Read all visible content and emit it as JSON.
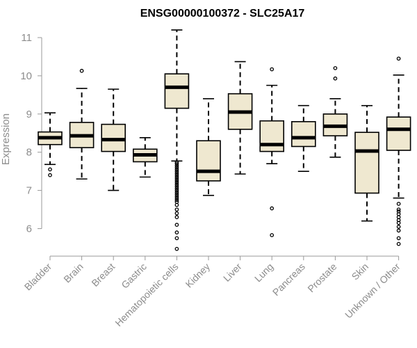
{
  "chart_data": {
    "type": "boxplot",
    "title": "ENSG00000100372 - SLC25A17",
    "xlabel": "",
    "ylabel": "Expression",
    "ylim": [
      5.5,
      11.2
    ],
    "yticks": [
      6,
      7,
      8,
      9,
      10,
      11
    ],
    "yticks_labels": [
      "6",
      "7",
      "8",
      "9",
      "10",
      "11"
    ],
    "colors": {
      "box_fill": "#efe8d0",
      "axis": "#999999",
      "text": "#8c8c8c"
    },
    "categories": [
      "Bladder",
      "Brain",
      "Breast",
      "Gastric",
      "Hematopoietic cells",
      "Kidney",
      "Liver",
      "Lung",
      "Pancreas",
      "Prostate",
      "Skin",
      "Unknown / Other"
    ],
    "boxes": [
      {
        "name": "Bladder",
        "whislo": 7.68,
        "q1": 8.2,
        "med": 8.38,
        "q3": 8.53,
        "whishi": 9.03,
        "fliers": [
          7.55,
          7.4
        ]
      },
      {
        "name": "Brain",
        "whislo": 7.3,
        "q1": 8.12,
        "med": 8.43,
        "q3": 8.78,
        "whishi": 9.67,
        "fliers": [
          10.13
        ]
      },
      {
        "name": "Breast",
        "whislo": 7.0,
        "q1": 8.02,
        "med": 8.33,
        "q3": 8.73,
        "whishi": 9.65,
        "fliers": []
      },
      {
        "name": "Gastric",
        "whislo": 7.35,
        "q1": 7.75,
        "med": 7.93,
        "q3": 8.08,
        "whishi": 8.38,
        "fliers": []
      },
      {
        "name": "Hematopoietic cells",
        "whislo": 7.77,
        "q1": 9.15,
        "med": 9.7,
        "q3": 10.05,
        "whishi": 11.2,
        "fliers": [
          7.74,
          7.7,
          7.65,
          7.6,
          7.55,
          7.5,
          7.45,
          7.4,
          7.35,
          7.3,
          7.25,
          7.2,
          7.15,
          7.1,
          7.05,
          7.0,
          6.95,
          6.9,
          6.85,
          6.8,
          6.75,
          6.7,
          6.62,
          6.5,
          6.4,
          6.3,
          6.1,
          5.9,
          5.75,
          5.47
        ]
      },
      {
        "name": "Kidney",
        "whislo": 6.87,
        "q1": 7.25,
        "med": 7.5,
        "q3": 8.3,
        "whishi": 9.4,
        "fliers": []
      },
      {
        "name": "Liver",
        "whislo": 7.43,
        "q1": 8.6,
        "med": 9.05,
        "q3": 9.53,
        "whishi": 10.37,
        "fliers": []
      },
      {
        "name": "Lung",
        "whislo": 7.7,
        "q1": 8.02,
        "med": 8.2,
        "q3": 8.82,
        "whishi": 9.75,
        "fliers": [
          10.17,
          6.53,
          5.83
        ]
      },
      {
        "name": "Pancreas",
        "whislo": 7.5,
        "q1": 8.15,
        "med": 8.38,
        "q3": 8.8,
        "whishi": 9.22,
        "fliers": []
      },
      {
        "name": "Prostate",
        "whislo": 7.87,
        "q1": 8.43,
        "med": 8.68,
        "q3": 9.0,
        "whishi": 9.4,
        "fliers": [
          10.2,
          9.93
        ]
      },
      {
        "name": "Skin",
        "whislo": 6.2,
        "q1": 6.93,
        "med": 8.03,
        "q3": 8.52,
        "whishi": 9.22,
        "fliers": []
      },
      {
        "name": "Unknown / Other",
        "whislo": 6.8,
        "q1": 8.05,
        "med": 8.6,
        "q3": 8.92,
        "whishi": 10.02,
        "fliers": [
          10.45,
          6.65,
          6.5,
          6.45,
          6.38,
          6.3,
          6.22,
          6.15,
          6.05,
          5.95,
          5.75,
          5.6
        ]
      }
    ]
  }
}
